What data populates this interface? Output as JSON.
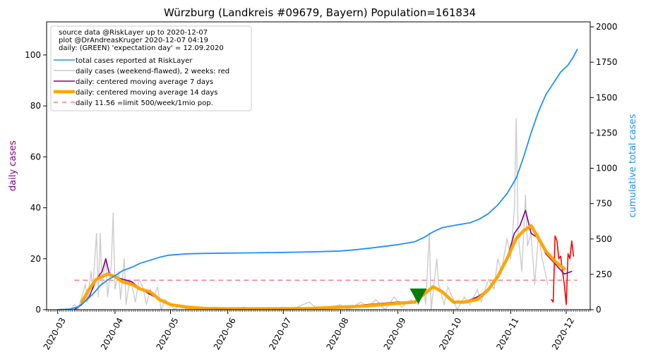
{
  "chart_data": {
    "type": "line",
    "title": "Würzburg (Landkreis #09679, Bayern) Population=161834",
    "ylabel_left": "daily cases",
    "ylabel_right": "cumulative total cases",
    "x_ticks": [
      "2020-03",
      "2020-04",
      "2020-05",
      "2020-06",
      "2020-07",
      "2020-08",
      "2020-09",
      "2020-10",
      "2020-11",
      "2020-12"
    ],
    "x_range": [
      "2020-02-24",
      "2020-12-14"
    ],
    "ylim_left": [
      0,
      113
    ],
    "ylim_right": [
      0,
      2035
    ],
    "y_ticks_left": [
      0,
      20,
      40,
      60,
      80,
      100
    ],
    "y_ticks_right": [
      0,
      250,
      500,
      750,
      1000,
      1250,
      1500,
      1750,
      2000
    ],
    "legend": {
      "placement": "top-left",
      "header": [
        "source data @RiskLayer up to 2020-12-07",
        "plot @DrAndreasKruger 2020-12-07 04:19",
        "daily: (GREEN) 'expectation day' = 12.09.2020"
      ],
      "entries": [
        {
          "label": "total cases reported at RiskLayer",
          "color": "#1e90ff",
          "style": "line"
        },
        {
          "label": "daily cases (weekend-flawed), 2 weeks: red",
          "color": "#cccccc",
          "style": "line"
        },
        {
          "label": "daily: centered moving average 7 days",
          "color": "#800080",
          "style": "line"
        },
        {
          "label": "daily: centered moving average 14 days",
          "color": "#ffa500",
          "style": "thick"
        },
        {
          "label": "daily 11.56 =limit 500/week/1mio pop.",
          "color": "#f08080",
          "style": "dashed"
        }
      ]
    },
    "limit_line": {
      "value": 11.56,
      "from": "2020-03-10",
      "to": "2020-12-07"
    },
    "expectation_day": {
      "date": "2020-09-12",
      "value": 5
    },
    "series": [
      {
        "name": "total cases reported at RiskLayer",
        "axis": "right",
        "color": "#1e90ff",
        "points": [
          [
            "2020-03-01",
            0
          ],
          [
            "2020-03-08",
            5
          ],
          [
            "2020-03-12",
            20
          ],
          [
            "2020-03-16",
            60
          ],
          [
            "2020-03-20",
            110
          ],
          [
            "2020-03-24",
            170
          ],
          [
            "2020-03-28",
            210
          ],
          [
            "2020-04-01",
            240
          ],
          [
            "2020-04-05",
            275
          ],
          [
            "2020-04-10",
            300
          ],
          [
            "2020-04-15",
            330
          ],
          [
            "2020-04-20",
            350
          ],
          [
            "2020-04-25",
            370
          ],
          [
            "2020-04-30",
            385
          ],
          [
            "2020-05-10",
            395
          ],
          [
            "2020-05-20",
            398
          ],
          [
            "2020-06-01",
            400
          ],
          [
            "2020-06-15",
            402
          ],
          [
            "2020-07-01",
            405
          ],
          [
            "2020-07-10",
            407
          ],
          [
            "2020-07-20",
            410
          ],
          [
            "2020-08-01",
            415
          ],
          [
            "2020-08-10",
            425
          ],
          [
            "2020-08-20",
            440
          ],
          [
            "2020-09-01",
            460
          ],
          [
            "2020-09-10",
            480
          ],
          [
            "2020-09-15",
            510
          ],
          [
            "2020-09-20",
            550
          ],
          [
            "2020-09-25",
            580
          ],
          [
            "2020-10-01",
            595
          ],
          [
            "2020-10-10",
            615
          ],
          [
            "2020-10-15",
            640
          ],
          [
            "2020-10-20",
            680
          ],
          [
            "2020-10-25",
            740
          ],
          [
            "2020-10-30",
            820
          ],
          [
            "2020-11-04",
            930
          ],
          [
            "2020-11-08",
            1080
          ],
          [
            "2020-11-12",
            1250
          ],
          [
            "2020-11-16",
            1400
          ],
          [
            "2020-11-20",
            1520
          ],
          [
            "2020-11-24",
            1600
          ],
          [
            "2020-11-28",
            1680
          ],
          [
            "2020-12-02",
            1730
          ],
          [
            "2020-12-05",
            1790
          ],
          [
            "2020-12-07",
            1840
          ]
        ]
      },
      {
        "name": "daily cases (weekend-flawed), 2 weeks: red",
        "axis": "left",
        "color": "#cccccc",
        "points": [
          [
            "2020-03-08",
            0
          ],
          [
            "2020-03-10",
            2
          ],
          [
            "2020-03-12",
            0
          ],
          [
            "2020-03-14",
            5
          ],
          [
            "2020-03-16",
            10
          ],
          [
            "2020-03-17",
            3
          ],
          [
            "2020-03-19",
            15
          ],
          [
            "2020-03-20",
            8
          ],
          [
            "2020-03-22",
            30
          ],
          [
            "2020-03-23",
            5
          ],
          [
            "2020-03-24",
            30
          ],
          [
            "2020-03-25",
            10
          ],
          [
            "2020-03-27",
            20
          ],
          [
            "2020-03-28",
            5
          ],
          [
            "2020-03-30",
            18
          ],
          [
            "2020-03-31",
            38
          ],
          [
            "2020-04-01",
            8
          ],
          [
            "2020-04-03",
            15
          ],
          [
            "2020-04-04",
            4
          ],
          [
            "2020-04-06",
            20
          ],
          [
            "2020-04-07",
            2
          ],
          [
            "2020-04-09",
            12
          ],
          [
            "2020-04-10",
            10
          ],
          [
            "2020-04-12",
            3
          ],
          [
            "2020-04-14",
            12
          ],
          [
            "2020-04-16",
            9
          ],
          [
            "2020-04-18",
            2
          ],
          [
            "2020-04-20",
            8
          ],
          [
            "2020-04-22",
            5
          ],
          [
            "2020-04-24",
            9
          ],
          [
            "2020-04-26",
            0
          ],
          [
            "2020-04-28",
            4
          ],
          [
            "2020-05-01",
            2
          ],
          [
            "2020-05-03",
            0
          ],
          [
            "2020-05-06",
            2
          ],
          [
            "2020-05-10",
            0
          ],
          [
            "2020-05-15",
            1
          ],
          [
            "2020-05-20",
            0
          ],
          [
            "2020-05-25",
            1
          ],
          [
            "2020-06-01",
            0
          ],
          [
            "2020-06-10",
            1
          ],
          [
            "2020-06-20",
            0
          ],
          [
            "2020-07-01",
            1
          ],
          [
            "2020-07-05",
            0
          ],
          [
            "2020-07-15",
            3
          ],
          [
            "2020-07-20",
            0
          ],
          [
            "2020-08-01",
            2
          ],
          [
            "2020-08-05",
            0
          ],
          [
            "2020-08-12",
            3
          ],
          [
            "2020-08-16",
            1
          ],
          [
            "2020-08-20",
            4
          ],
          [
            "2020-08-25",
            0
          ],
          [
            "2020-08-30",
            5
          ],
          [
            "2020-09-03",
            1
          ],
          [
            "2020-09-08",
            4
          ],
          [
            "2020-09-12",
            2
          ],
          [
            "2020-09-15",
            8
          ],
          [
            "2020-09-16",
            2
          ],
          [
            "2020-09-18",
            30
          ],
          [
            "2020-09-19",
            0
          ],
          [
            "2020-09-22",
            20
          ],
          [
            "2020-09-23",
            10
          ],
          [
            "2020-09-26",
            2
          ],
          [
            "2020-09-28",
            9
          ],
          [
            "2020-10-01",
            4
          ],
          [
            "2020-10-03",
            0
          ],
          [
            "2020-10-07",
            5
          ],
          [
            "2020-10-10",
            2
          ],
          [
            "2020-10-14",
            8
          ],
          [
            "2020-10-16",
            3
          ],
          [
            "2020-10-20",
            12
          ],
          [
            "2020-10-23",
            8
          ],
          [
            "2020-10-25",
            20
          ],
          [
            "2020-10-27",
            15
          ],
          [
            "2020-10-30",
            28
          ],
          [
            "2020-11-01",
            20
          ],
          [
            "2020-11-03",
            40
          ],
          [
            "2020-11-04",
            75
          ],
          [
            "2020-11-05",
            30
          ],
          [
            "2020-11-07",
            15
          ],
          [
            "2020-11-09",
            45
          ],
          [
            "2020-11-10",
            25
          ],
          [
            "2020-11-12",
            30
          ],
          [
            "2020-11-14",
            10
          ],
          [
            "2020-11-16",
            30
          ],
          [
            "2020-11-18",
            20
          ],
          [
            "2020-11-21",
            10
          ]
        ]
      },
      {
        "name": "daily cases, last 2 weeks",
        "axis": "left",
        "color": "#ff0000",
        "points": [
          [
            "2020-11-23",
            4
          ],
          [
            "2020-11-24",
            3
          ],
          [
            "2020-11-25",
            29
          ],
          [
            "2020-11-26",
            27
          ],
          [
            "2020-11-27",
            20
          ],
          [
            "2020-11-28",
            21
          ],
          [
            "2020-11-29",
            15
          ],
          [
            "2020-11-30",
            10
          ],
          [
            "2020-12-01",
            2
          ],
          [
            "2020-12-02",
            22
          ],
          [
            "2020-12-03",
            20
          ],
          [
            "2020-12-04",
            27
          ],
          [
            "2020-12-05",
            21
          ]
        ]
      },
      {
        "name": "daily: centered moving average 7 days",
        "axis": "left",
        "color": "#800080",
        "points": [
          [
            "2020-03-10",
            0
          ],
          [
            "2020-03-14",
            2
          ],
          [
            "2020-03-18",
            5
          ],
          [
            "2020-03-22",
            12
          ],
          [
            "2020-03-25",
            15
          ],
          [
            "2020-03-27",
            20
          ],
          [
            "2020-03-29",
            14
          ],
          [
            "2020-04-01",
            13
          ],
          [
            "2020-04-05",
            12
          ],
          [
            "2020-04-10",
            11
          ],
          [
            "2020-04-15",
            8
          ],
          [
            "2020-04-20",
            6
          ],
          [
            "2020-04-25",
            4
          ],
          [
            "2020-05-01",
            2
          ],
          [
            "2020-05-10",
            1
          ],
          [
            "2020-05-20",
            0.5
          ],
          [
            "2020-06-01",
            0.5
          ],
          [
            "2020-06-20",
            0.4
          ],
          [
            "2020-07-01",
            0.5
          ],
          [
            "2020-07-15",
            0.8
          ],
          [
            "2020-08-01",
            1
          ],
          [
            "2020-08-15",
            2
          ],
          [
            "2020-09-01",
            3
          ],
          [
            "2020-09-10",
            3
          ],
          [
            "2020-09-15",
            6
          ],
          [
            "2020-09-20",
            9
          ],
          [
            "2020-09-25",
            7
          ],
          [
            "2020-10-01",
            3
          ],
          [
            "2020-10-07",
            3
          ],
          [
            "2020-10-14",
            5
          ],
          [
            "2020-10-20",
            8
          ],
          [
            "2020-10-25",
            13
          ],
          [
            "2020-10-30",
            20
          ],
          [
            "2020-11-03",
            30
          ],
          [
            "2020-11-06",
            33
          ],
          [
            "2020-11-09",
            39
          ],
          [
            "2020-11-12",
            30
          ],
          [
            "2020-11-16",
            28
          ],
          [
            "2020-11-20",
            22
          ],
          [
            "2020-11-25",
            18
          ],
          [
            "2020-11-30",
            14
          ],
          [
            "2020-12-04",
            15
          ]
        ]
      },
      {
        "name": "daily: centered moving average 14 days",
        "axis": "left",
        "color": "#ffa500",
        "points": [
          [
            "2020-03-14",
            3
          ],
          [
            "2020-03-18",
            8
          ],
          [
            "2020-03-22",
            12
          ],
          [
            "2020-03-25",
            13
          ],
          [
            "2020-03-28",
            14
          ],
          [
            "2020-04-01",
            13
          ],
          [
            "2020-04-05",
            11
          ],
          [
            "2020-04-10",
            10
          ],
          [
            "2020-04-15",
            8
          ],
          [
            "2020-04-20",
            7
          ],
          [
            "2020-04-25",
            4
          ],
          [
            "2020-05-01",
            2
          ],
          [
            "2020-05-10",
            1
          ],
          [
            "2020-05-20",
            0.5
          ],
          [
            "2020-06-01",
            0.4
          ],
          [
            "2020-06-20",
            0.4
          ],
          [
            "2020-07-01",
            0.4
          ],
          [
            "2020-07-15",
            0.5
          ],
          [
            "2020-08-01",
            1
          ],
          [
            "2020-08-15",
            1.5
          ],
          [
            "2020-09-01",
            2.5
          ],
          [
            "2020-09-10",
            3
          ],
          [
            "2020-09-15",
            6
          ],
          [
            "2020-09-20",
            9
          ],
          [
            "2020-09-25",
            7
          ],
          [
            "2020-10-01",
            3
          ],
          [
            "2020-10-07",
            3
          ],
          [
            "2020-10-14",
            4
          ],
          [
            "2020-10-20",
            8
          ],
          [
            "2020-10-25",
            13
          ],
          [
            "2020-10-30",
            20
          ],
          [
            "2020-11-04",
            28
          ],
          [
            "2020-11-08",
            31
          ],
          [
            "2020-11-12",
            33
          ],
          [
            "2020-11-16",
            28
          ],
          [
            "2020-11-20",
            23
          ],
          [
            "2020-11-25",
            19
          ],
          [
            "2020-11-30",
            16
          ]
        ]
      }
    ]
  }
}
